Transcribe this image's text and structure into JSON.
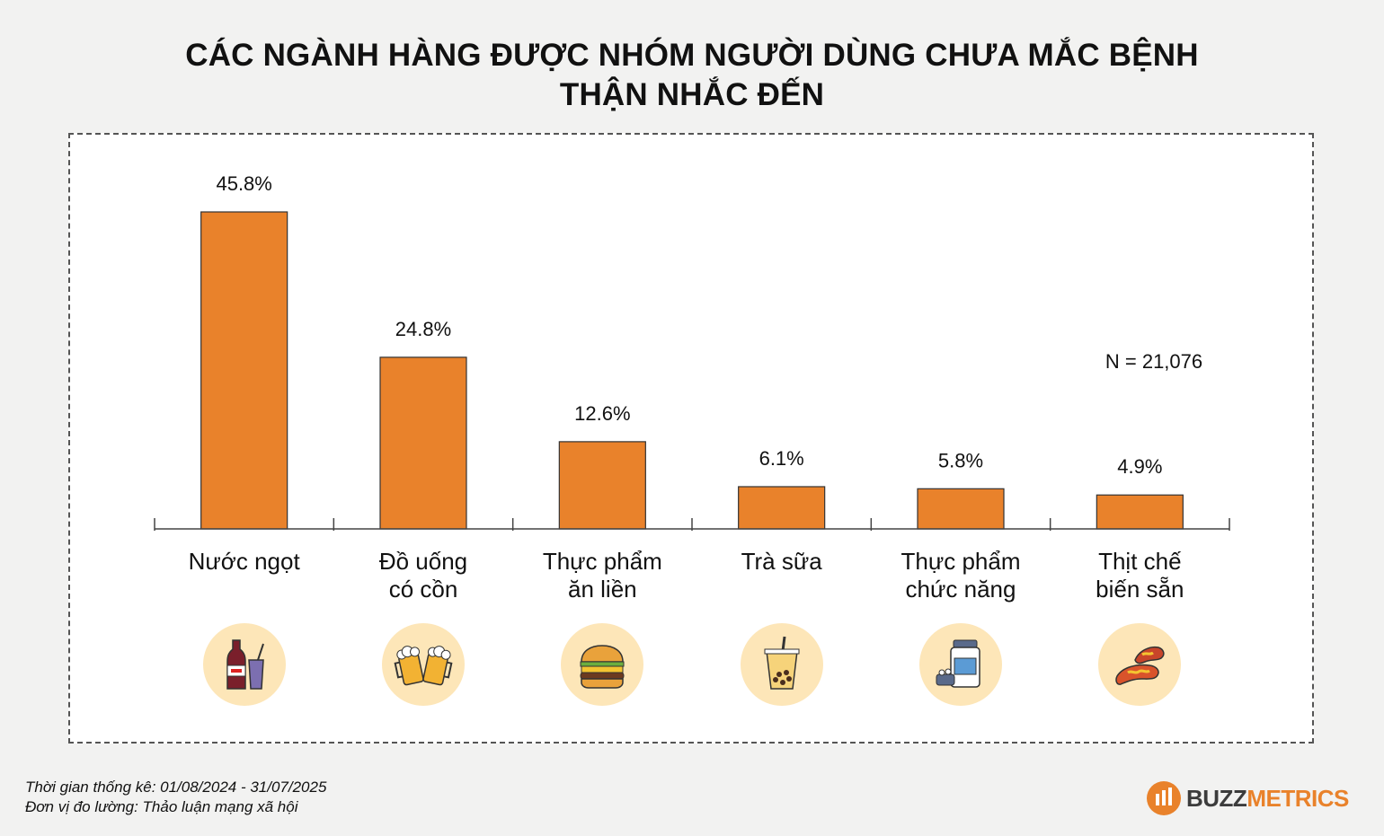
{
  "title_lines": [
    "CÁC NGÀNH HÀNG ĐƯỢC NHÓM NGƯỜI DÙNG CHƯA MẮC BỆNH",
    "THẬN NHẮC ĐẾN"
  ],
  "sample_note": "N = 21,076",
  "footer": {
    "period": "Thời gian thống kê: 01/08/2024 - 31/07/2025",
    "unit": "Đơn vị đo lường: Thảo luận mạng xã hội"
  },
  "brand": {
    "part1": "BUZZ",
    "part2": "METRICS"
  },
  "colors": {
    "bar": "#e9822b",
    "icon_bg": "#fde6b8",
    "brand": "#e9822b"
  },
  "icons": [
    "soda-bottle-icon",
    "beer-mugs-icon",
    "burger-icon",
    "bubble-tea-icon",
    "supplement-jar-icon",
    "sausage-icon"
  ],
  "chart_data": {
    "type": "bar",
    "categories": [
      [
        "Nước ngọt"
      ],
      [
        "Đồ uống",
        "có cồn"
      ],
      [
        "Thực phẩm",
        "ăn liền"
      ],
      [
        "Trà sữa"
      ],
      [
        "Thực phẩm",
        "chức năng"
      ],
      [
        "Thịt chế",
        "biến sẵn"
      ]
    ],
    "values": [
      45.8,
      24.8,
      12.6,
      6.1,
      5.8,
      4.9
    ],
    "value_labels": [
      "45.8%",
      "24.8%",
      "12.6%",
      "6.1%",
      "5.8%",
      "4.9%"
    ],
    "ylim": [
      0,
      50
    ],
    "grid": false,
    "legend": "none"
  }
}
